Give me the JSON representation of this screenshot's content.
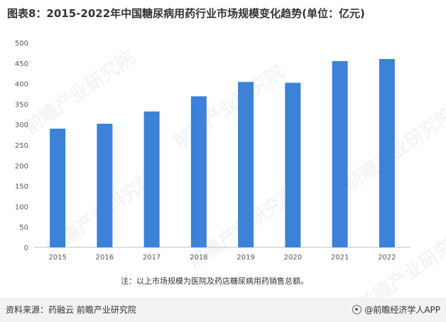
{
  "title": "图表8：2015-2022年中国糖尿病用药行业市场规模变化趋势(单位：亿元)",
  "note": "注：以上市场规模为医院及药店糖尿病用药销售总额。",
  "footer": {
    "source": "资料来源：药融云 前瞻产业研究院",
    "brand": "@前瞻经济学人APP"
  },
  "watermark": "前瞻产业研究院",
  "chart_data": {
    "type": "bar",
    "categories": [
      "2015",
      "2016",
      "2017",
      "2018",
      "2019",
      "2020",
      "2021",
      "2022"
    ],
    "values": [
      290,
      302,
      332,
      369,
      404,
      402,
      455,
      460
    ],
    "ylim": [
      0,
      500
    ],
    "yticks": [
      0,
      50,
      100,
      150,
      200,
      250,
      300,
      350,
      400,
      450,
      500
    ],
    "bar_color": "#3b82d8",
    "grid": false,
    "legend": "none"
  }
}
